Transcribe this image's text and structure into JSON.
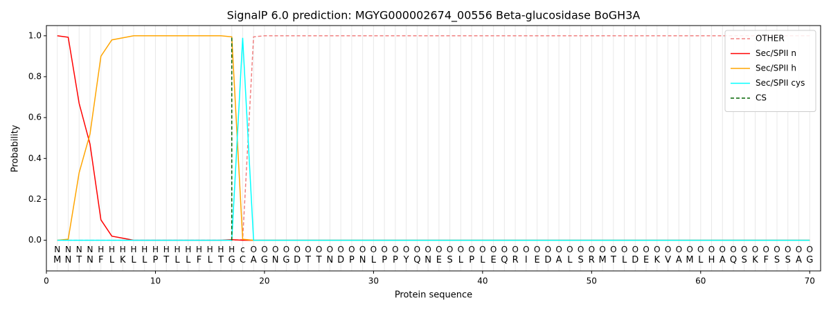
{
  "chart_data": {
    "type": "line",
    "title": "SignalP 6.0 prediction: MGYG000002674_00556 Beta-glucosidase BoGH3A",
    "xlabel": "Protein sequence",
    "ylabel": "Probability",
    "xlim": [
      0,
      71
    ],
    "ylim": [
      -0.15,
      1.05
    ],
    "xticks": [
      0,
      10,
      20,
      30,
      40,
      50,
      60,
      70
    ],
    "yticks": [
      {
        "value": 0,
        "label": "0.0"
      },
      {
        "value": 0.2,
        "label": "0.2"
      },
      {
        "value": 0.4,
        "label": "0.4"
      },
      {
        "value": 0.6,
        "label": "0.6"
      },
      {
        "value": 0.8,
        "label": "0.8"
      },
      {
        "value": 1,
        "label": "1.0"
      }
    ],
    "grid": true,
    "legend": "upper right",
    "x": [
      1,
      2,
      3,
      4,
      5,
      6,
      7,
      8,
      9,
      10,
      11,
      12,
      13,
      14,
      15,
      16,
      17,
      18,
      19,
      20,
      21,
      22,
      23,
      24,
      25,
      26,
      27,
      28,
      29,
      30,
      31,
      32,
      33,
      34,
      35,
      36,
      37,
      38,
      39,
      40,
      41,
      42,
      43,
      44,
      45,
      46,
      47,
      48,
      49,
      50,
      51,
      52,
      53,
      54,
      55,
      56,
      57,
      58,
      59,
      60,
      61,
      62,
      63,
      64,
      65,
      66,
      67,
      68,
      69,
      70
    ],
    "sequence": [
      "M",
      "N",
      "T",
      "N",
      "F",
      "L",
      "K",
      "L",
      "L",
      "P",
      "T",
      "L",
      "L",
      "F",
      "L",
      "T",
      "G",
      "C",
      "A",
      "G",
      "N",
      "G",
      "D",
      "T",
      "T",
      "N",
      "D",
      "P",
      "N",
      "L",
      "P",
      "P",
      "Y",
      "Q",
      "N",
      "E",
      "S",
      "L",
      "P",
      "L",
      "E",
      "Q",
      "R",
      "I",
      "E",
      "D",
      "A",
      "L",
      "S",
      "R",
      "M",
      "T",
      "L",
      "D",
      "E",
      "K",
      "V",
      "A",
      "M",
      "L",
      "H",
      "A",
      "Q",
      "S",
      "K",
      "F",
      "S",
      "S",
      "A",
      "G"
    ],
    "regions": [
      "N",
      "N",
      "N",
      "N",
      "H",
      "H",
      "H",
      "H",
      "H",
      "H",
      "H",
      "H",
      "H",
      "H",
      "H",
      "H",
      "H",
      "c",
      "O",
      "O",
      "O",
      "O",
      "O",
      "O",
      "O",
      "O",
      "O",
      "O",
      "O",
      "O",
      "O",
      "O",
      "O",
      "O",
      "O",
      "O",
      "O",
      "O",
      "O",
      "O",
      "O",
      "O",
      "O",
      "O",
      "O",
      "O",
      "O",
      "O",
      "O",
      "O",
      "O",
      "O",
      "O",
      "O",
      "O",
      "O",
      "O",
      "O",
      "O",
      "O",
      "O",
      "O",
      "O",
      "O",
      "O",
      "O",
      "O",
      "O",
      "O",
      "O"
    ],
    "region_colors": {
      "N": "#ff0000",
      "H": "#ffa500",
      "c": "#00e5ee",
      "O": "#808080"
    },
    "series": [
      {
        "name": "OTHER",
        "color": "#f08080",
        "dashed": true,
        "values": [
          0,
          0,
          0,
          0,
          0,
          0,
          0,
          0,
          0,
          0,
          0,
          0,
          0,
          0,
          0,
          0,
          0,
          0.003,
          0.995,
          1,
          1,
          1,
          1,
          1,
          1,
          1,
          1,
          1,
          1,
          1,
          1,
          1,
          1,
          1,
          1,
          1,
          1,
          1,
          1,
          1,
          1,
          1,
          1,
          1,
          1,
          1,
          1,
          1,
          1,
          1,
          1,
          1,
          1,
          1,
          1,
          1,
          1,
          1,
          1,
          1,
          1,
          1,
          1,
          1,
          1,
          1,
          1,
          1,
          1,
          1
        ]
      },
      {
        "name": "Sec/SPII n",
        "color": "#ff0000",
        "dashed": false,
        "values": [
          1,
          0.993,
          0.67,
          0.47,
          0.1,
          0.02,
          0.01,
          0,
          0,
          0,
          0,
          0,
          0,
          0,
          0,
          0,
          0.003,
          0,
          0,
          0,
          0,
          0,
          0,
          0,
          0,
          0,
          0,
          0,
          0,
          0,
          0,
          0,
          0,
          0,
          0,
          0,
          0,
          0,
          0,
          0,
          0,
          0,
          0,
          0,
          0,
          0,
          0,
          0,
          0,
          0,
          0,
          0,
          0,
          0,
          0,
          0,
          0,
          0,
          0,
          0,
          0,
          0,
          0,
          0,
          0,
          0,
          0,
          0,
          0,
          0
        ]
      },
      {
        "name": "Sec/SPII h",
        "color": "#ffa500",
        "dashed": false,
        "values": [
          0,
          0.005,
          0.33,
          0.52,
          0.9,
          0.98,
          0.99,
          1,
          1,
          1,
          1,
          1,
          1,
          1,
          1,
          1,
          0.995,
          0.005,
          0,
          0,
          0,
          0,
          0,
          0,
          0,
          0,
          0,
          0,
          0,
          0,
          0,
          0,
          0,
          0,
          0,
          0,
          0,
          0,
          0,
          0,
          0,
          0,
          0,
          0,
          0,
          0,
          0,
          0,
          0,
          0,
          0,
          0,
          0,
          0,
          0,
          0,
          0,
          0,
          0,
          0,
          0,
          0,
          0,
          0,
          0,
          0,
          0,
          0,
          0,
          0
        ]
      },
      {
        "name": "Sec/SPII cys",
        "color": "#00ffff",
        "dashed": false,
        "values": [
          0,
          0,
          0,
          0,
          0,
          0,
          0,
          0,
          0,
          0,
          0,
          0,
          0,
          0,
          0,
          0,
          0,
          0.99,
          0,
          0,
          0,
          0,
          0,
          0,
          0,
          0,
          0,
          0,
          0,
          0,
          0,
          0,
          0,
          0,
          0,
          0,
          0,
          0,
          0,
          0,
          0,
          0,
          0,
          0,
          0,
          0,
          0,
          0,
          0,
          0,
          0,
          0,
          0,
          0,
          0,
          0,
          0,
          0,
          0,
          0,
          0,
          0,
          0,
          0,
          0,
          0,
          0,
          0,
          0,
          0
        ]
      }
    ],
    "vline": {
      "name": "CS",
      "x": 17,
      "color": "#006400",
      "dashed": true
    }
  }
}
